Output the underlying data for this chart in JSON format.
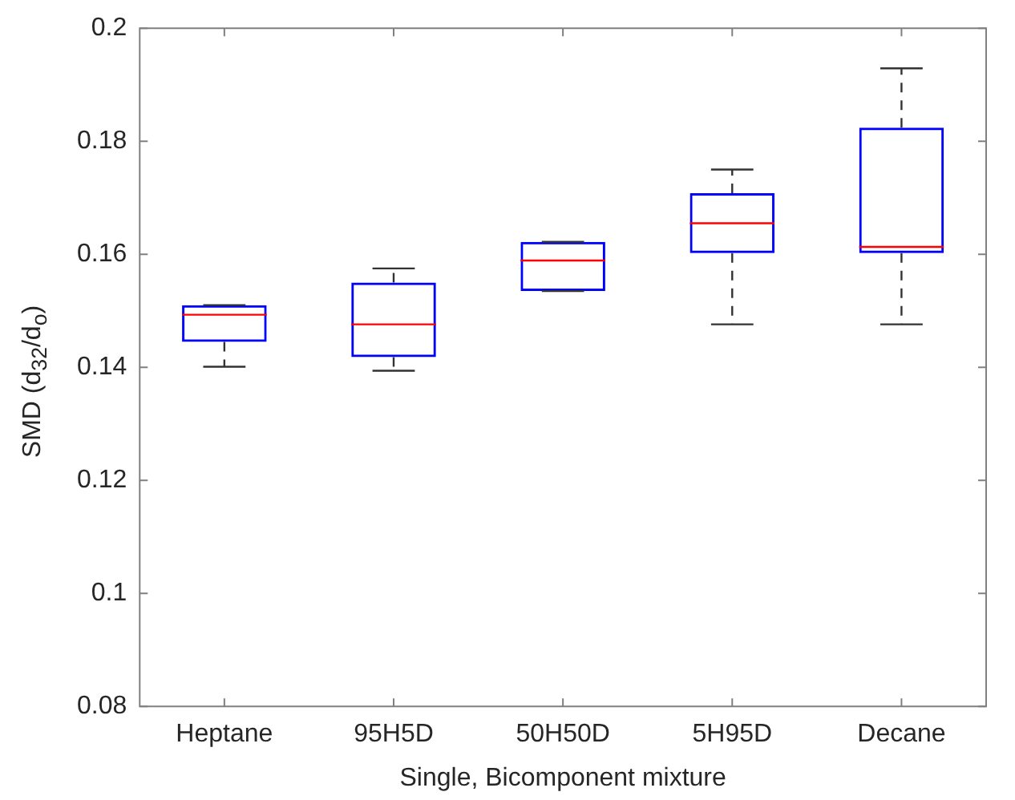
{
  "chart_data": {
    "type": "box",
    "xlabel": "Single, Bicomponent mixture",
    "ylabel": "SMD (d$_{32}$/d$_{o}$)",
    "categories": [
      "Heptane",
      "95H5D",
      "50H50D",
      "5H95D",
      "Decane"
    ],
    "color": "#0000ff",
    "boxes": [
      {
        "low": 0.1401,
        "q1": 0.1445,
        "median": 0.1493,
        "q3": 0.151,
        "high": 0.151
      },
      {
        "low": 0.1394,
        "q1": 0.1418,
        "median": 0.1476,
        "q3": 0.155,
        "high": 0.1575
      },
      {
        "low": 0.1535,
        "q1": 0.1535,
        "median": 0.1589,
        "q3": 0.1622,
        "high": 0.1622
      },
      {
        "low": 0.1476,
        "q1": 0.1602,
        "median": 0.1655,
        "q3": 0.1708,
        "high": 0.175
      },
      {
        "low": 0.1476,
        "q1": 0.1602,
        "median": 0.1613,
        "q3": 0.1824,
        "high": 0.1929
      }
    ],
    "ylim": [
      0.08,
      0.2
    ],
    "yticks": [
      0.08,
      0.1,
      0.12,
      0.14,
      0.16,
      0.18,
      0.2
    ],
    "grid": false
  }
}
